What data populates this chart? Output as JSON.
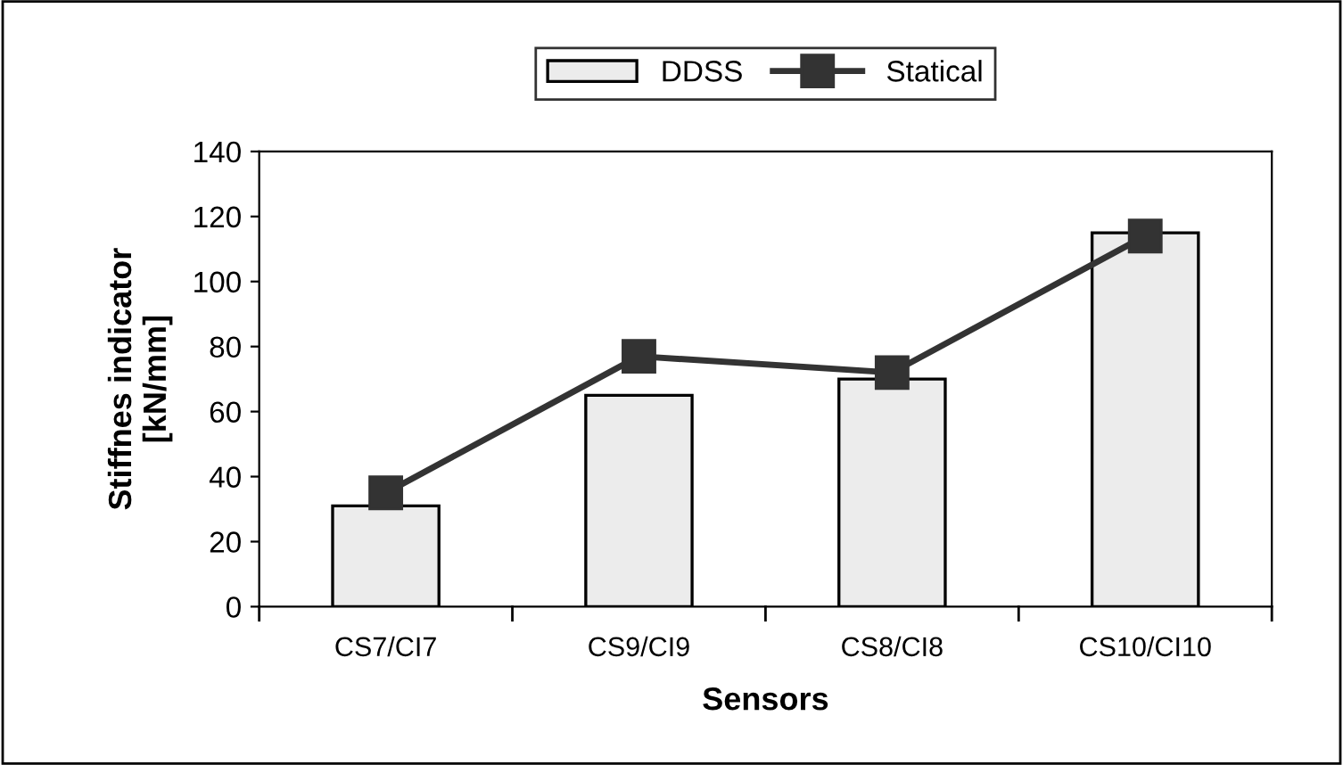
{
  "chart_data": {
    "type": "bar",
    "xlabel": "Sensors",
    "ylabel": "Stiffnes indicator\n[kN/mm]",
    "categories": [
      "CS7/CI7",
      "CS9/CI9",
      "CS8/CI8",
      "CS10/CI10"
    ],
    "series": [
      {
        "name": "DDSS",
        "color": "#ececec",
        "values": [
          31,
          65,
          70,
          115
        ]
      },
      {
        "name": "Statical",
        "type": "line",
        "color": "#333333",
        "marker": "square",
        "values": [
          35,
          77,
          72,
          114
        ]
      }
    ],
    "ylim": [
      0,
      140
    ],
    "yticks": [
      0,
      20,
      40,
      60,
      80,
      100,
      120,
      140
    ],
    "grid": false,
    "legend": "top"
  }
}
